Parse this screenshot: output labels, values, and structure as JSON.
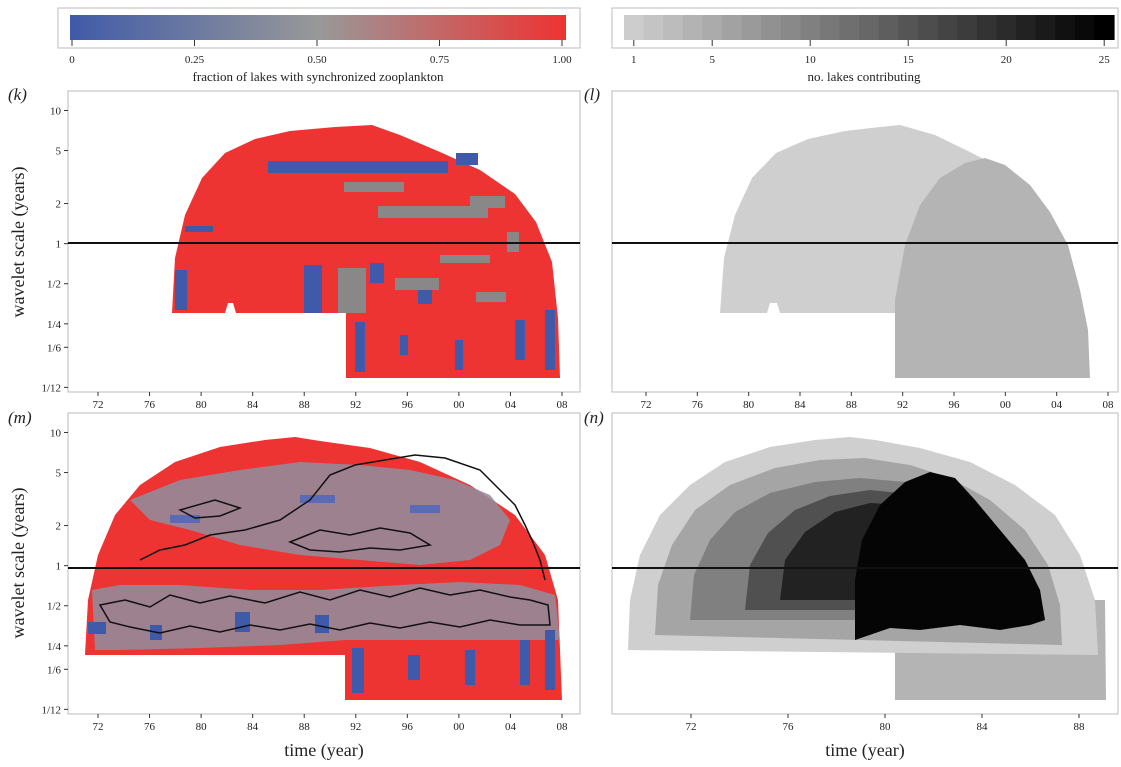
{
  "colors": {
    "sync_low": "#3f5aa8",
    "sync_mid": "#888888",
    "sync_high": "#ee3333",
    "count_low": "#cccccc",
    "count_high": "#000000",
    "black_line": "#111111",
    "frame": "#bbbbbb"
  },
  "colorbars": {
    "sync": {
      "ticks": [
        "0",
        "0.25",
        "0.50",
        "0.75",
        "1.00"
      ],
      "tick_values": [
        0,
        0.25,
        0.5,
        0.75,
        1.0
      ],
      "label": "fraction of lakes with synchronized zooplankton"
    },
    "count": {
      "ticks": [
        "1",
        "5",
        "10",
        "15",
        "20",
        "25"
      ],
      "tick_values": [
        1,
        5,
        10,
        15,
        20,
        25
      ],
      "label": "no. lakes contributing",
      "steps": 25
    }
  },
  "panels": [
    {
      "id": "k",
      "label": "(k)"
    },
    {
      "id": "l",
      "label": "(l)"
    },
    {
      "id": "m",
      "label": "(m)"
    },
    {
      "id": "n",
      "label": "(n)"
    }
  ],
  "axes": {
    "ylabel": "wavelet scale (years)",
    "xlabel": "time (year)",
    "y_ticks": [
      "10",
      "5",
      "2",
      "1",
      "1/2",
      "1/4",
      "1/6",
      "1/12"
    ],
    "x_ticks_main": [
      "72",
      "76",
      "80",
      "84",
      "88",
      "92",
      "96",
      "00",
      "04",
      "08"
    ],
    "x_ticks_n": [
      "72",
      "76",
      "80",
      "84",
      "88"
    ]
  },
  "chart_data": [
    {
      "panel": "k",
      "type": "heatmap",
      "x_range": [
        "1969",
        "2009"
      ],
      "y_scale": "log",
      "y_range_years": [
        0.0833,
        14
      ],
      "reference_line_years": 1,
      "color_variable": "fraction of lakes with synchronized zooplankton",
      "color_range": [
        0,
        1
      ]
    },
    {
      "panel": "l",
      "type": "heatmap",
      "x_range": [
        "1969",
        "2009"
      ],
      "y_scale": "log",
      "y_range_years": [
        0.0833,
        14
      ],
      "reference_line_years": 1,
      "color_variable": "no. lakes contributing",
      "color_range": [
        1,
        25
      ]
    },
    {
      "panel": "m",
      "type": "heatmap",
      "x_range": [
        "1969",
        "2009"
      ],
      "y_scale": "log",
      "y_range_years": [
        0.0833,
        14
      ],
      "reference_line_years": 1,
      "color_variable": "fraction of lakes with synchronized zooplankton",
      "color_range": [
        0,
        1
      ],
      "contours": true
    },
    {
      "panel": "n",
      "type": "heatmap",
      "x_range": [
        "1969",
        "1989"
      ],
      "y_scale": "log",
      "y_range_years": [
        0.0833,
        14
      ],
      "reference_line_years": 1,
      "color_variable": "no. lakes contributing",
      "color_range": [
        1,
        25
      ]
    }
  ]
}
